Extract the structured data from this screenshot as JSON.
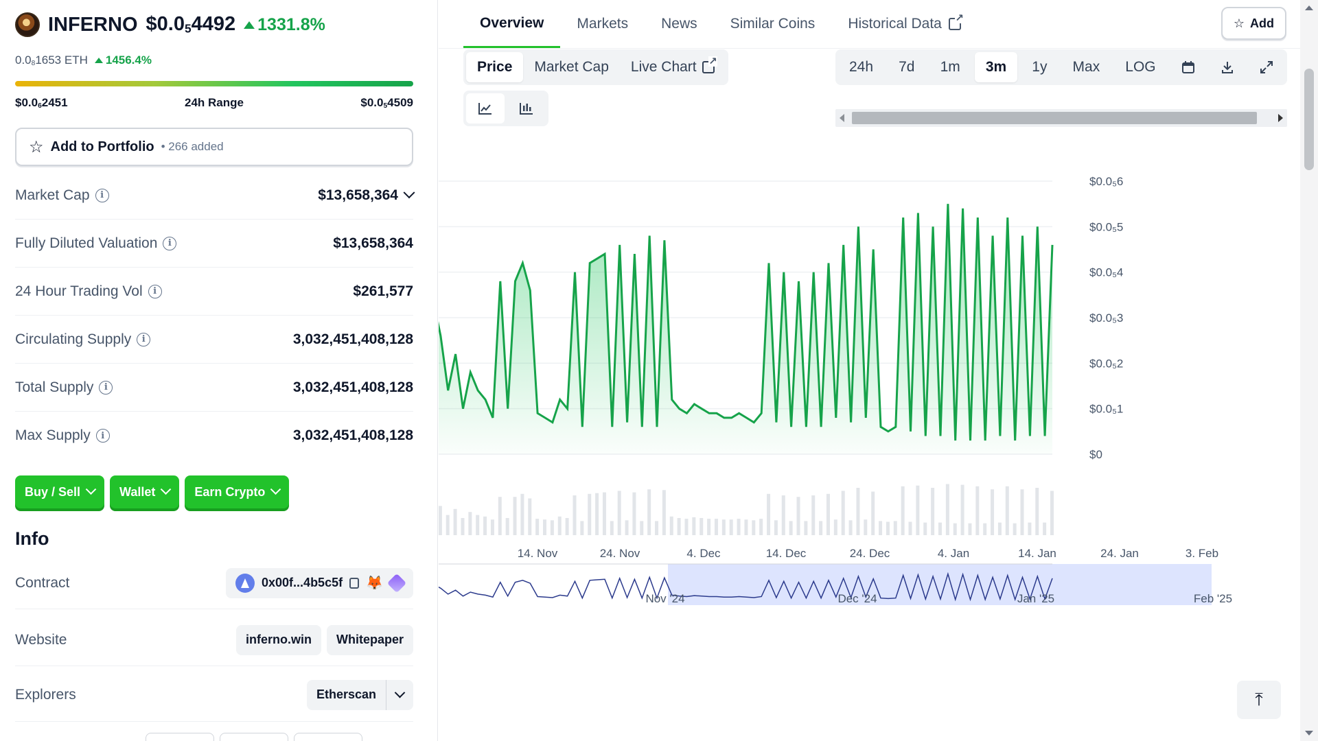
{
  "coin": {
    "name": "INFERNO",
    "price_prefix": "$0.0",
    "price_sub": "5",
    "price_suffix": "4492",
    "change": "1331.8%",
    "eth_prefix": "0.0",
    "eth_sub": "8",
    "eth_suffix": "1653 ETH",
    "eth_change": "1456.4%",
    "icon": "inferno-logo"
  },
  "range": {
    "low_prefix": "$0.0",
    "low_sub": "6",
    "low_suffix": "2451",
    "label": "24h Range",
    "high_prefix": "$0.0",
    "high_sub": "5",
    "high_suffix": "4509"
  },
  "portfolio": {
    "label": "Add to Portfolio",
    "count": "• 266 added"
  },
  "stats": [
    {
      "label": "Market Cap",
      "value": "$13,658,364"
    },
    {
      "label": "Fully Diluted Valuation",
      "value": "$13,658,364"
    },
    {
      "label": "24 Hour Trading Vol",
      "value": "$261,577"
    },
    {
      "label": "Circulating Supply",
      "value": "3,032,451,408,128"
    },
    {
      "label": "Total Supply",
      "value": "3,032,451,408,128"
    },
    {
      "label": "Max Supply",
      "value": "3,032,451,408,128"
    }
  ],
  "actions": {
    "buy_sell": "Buy / Sell",
    "wallet": "Wallet",
    "earn": "Earn Crypto"
  },
  "info": {
    "title": "Info",
    "contract_label": "Contract",
    "contract_value": "0x00f...4b5c5f",
    "website_label": "Website",
    "website_link": "inferno.win",
    "whitepaper": "Whitepaper",
    "explorers_label": "Explorers",
    "explorer": "Etherscan"
  },
  "tabs": [
    {
      "label": "Overview",
      "active": true
    },
    {
      "label": "Markets"
    },
    {
      "label": "News"
    },
    {
      "label": "Similar Coins"
    },
    {
      "label": "Historical Data"
    }
  ],
  "add_button": "Add",
  "chart_type_tabs": [
    {
      "label": "Price",
      "active": true
    },
    {
      "label": "Market Cap"
    },
    {
      "label": "Live Chart"
    }
  ],
  "ranges": [
    {
      "label": "24h"
    },
    {
      "label": "7d"
    },
    {
      "label": "1m"
    },
    {
      "label": "3m",
      "active": true
    },
    {
      "label": "1y"
    },
    {
      "label": "Max"
    },
    {
      "label": "LOG"
    }
  ],
  "colors": {
    "accent": "#22c22b",
    "line": "#16a34a",
    "navigator": "#c7d2fe"
  },
  "chart_data": {
    "type": "area",
    "series": [
      {
        "values": [
          0.34,
          0.26,
          0.14,
          0.22,
          0.1,
          0.18,
          0.14,
          0.12,
          0.08,
          0.38,
          0.1,
          0.38,
          0.42,
          0.36,
          0.09,
          0.08,
          0.07,
          0.12,
          0.1,
          0.4,
          0.06,
          0.42,
          0.43,
          0.44,
          0.06,
          0.46,
          0.07,
          0.44,
          0.06,
          0.48,
          0.06,
          0.47,
          0.12,
          0.1,
          0.09,
          0.11,
          0.1,
          0.09,
          0.09,
          0.08,
          0.08,
          0.09,
          0.08,
          0.07,
          0.09,
          0.42,
          0.07,
          0.4,
          0.06,
          0.38,
          0.06,
          0.4,
          0.06,
          0.42,
          0.08,
          0.46,
          0.07,
          0.5,
          0.08,
          0.45,
          0.06,
          0.05,
          0.06,
          0.52,
          0.05,
          0.53,
          0.04,
          0.5,
          0.04,
          0.55,
          0.03,
          0.54,
          0.03,
          0.52,
          0.03,
          0.48,
          0.04,
          0.52,
          0.03,
          0.48,
          0.04,
          0.5,
          0.04,
          0.46
        ]
      }
    ],
    "x_ticks": [
      "14. Nov",
      "24. Nov",
      "4. Dec",
      "14. Dec",
      "24. Dec",
      "4. Jan",
      "14. Jan",
      "24. Jan",
      "3. Feb"
    ],
    "y_ticks": [
      "$0.0₅6",
      "$0.0₅5",
      "$0.0₅4",
      "$0.0₅3",
      "$0.0₅2",
      "$0.0₅1",
      "$0"
    ],
    "ylim": [
      0,
      0.6
    ],
    "ylabel_unit": "× $0.00001",
    "navigator_labels": [
      "Nov '24",
      "Dec '24",
      "Jan '25",
      "Feb '25"
    ]
  }
}
